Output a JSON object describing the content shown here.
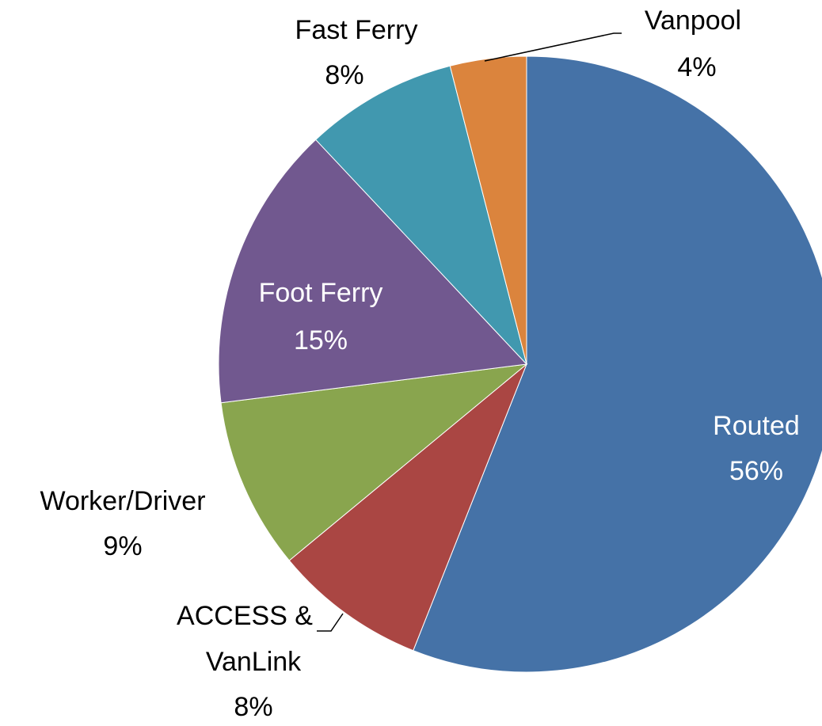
{
  "chart_data": {
    "type": "pie",
    "categories": [
      "Routed",
      "ACCESS & VanLink",
      "Worker/Driver",
      "Foot Ferry",
      "Fast Ferry",
      "Vanpool"
    ],
    "values": [
      56,
      8,
      9,
      15,
      8,
      4
    ],
    "value_labels": [
      "56%",
      "8%",
      "9%",
      "15%",
      "8%",
      "4%"
    ],
    "colors": [
      "#4572a7",
      "#aa4643",
      "#89a54e",
      "#71588f",
      "#4198af",
      "#db843d"
    ]
  }
}
